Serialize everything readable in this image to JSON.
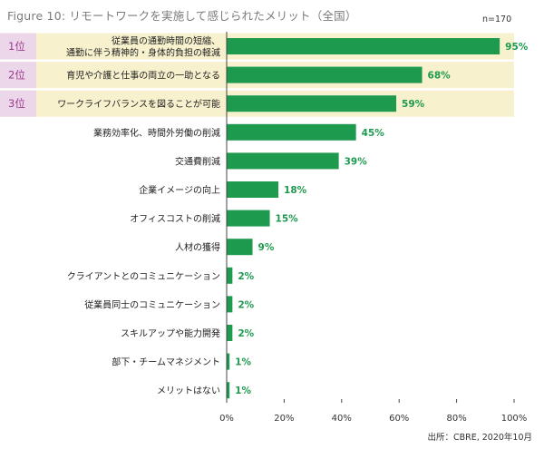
{
  "figure": {
    "title": "Figure 10: リモートワークを実施して感じられたメリット（全国）",
    "sample_note": "n=170",
    "source": "出所：CBRE, 2020年10月"
  },
  "colors": {
    "bar": "#1e9a4f",
    "value_text": "#1e9a4f",
    "highlight_band": "#f7f1cd",
    "rank_badge": "#ecd7ea",
    "rank_text": "#9b3a8c",
    "axis": "#444444"
  },
  "chart_data": {
    "type": "bar",
    "orientation": "horizontal",
    "categories": [
      "従業員の通勤時間の短縮、\n通勤に伴う精神的・身体的負担の軽減",
      "育児や介護と仕事の両立の一助となる",
      "ワークライフバランスを図ることが可能",
      "業務効率化、時間外労働の削減",
      "交通費削減",
      "企業イメージの向上",
      "オフィスコストの削減",
      "人材の獲得",
      "クライアントとのコミュニケーション",
      "従業員同士のコミュニケーション",
      "スキルアップや能力開発",
      "部下・チームマネジメント",
      "メリットはない"
    ],
    "values": [
      95,
      68,
      59,
      45,
      39,
      18,
      15,
      9,
      2,
      2,
      2,
      1,
      1
    ],
    "value_labels": [
      "95%",
      "68%",
      "59%",
      "45%",
      "39%",
      "18%",
      "15%",
      "9%",
      "2%",
      "2%",
      "2%",
      "1%",
      "1%"
    ],
    "top_ranks": [
      "1位",
      "2位",
      "3位"
    ],
    "xlim": [
      0,
      100
    ],
    "x_ticks": [
      "0%",
      "20%",
      "40%",
      "60%",
      "80%",
      "100%"
    ],
    "x_tick_values": [
      0,
      20,
      40,
      60,
      80,
      100
    ],
    "grid": false,
    "legend": "none"
  }
}
